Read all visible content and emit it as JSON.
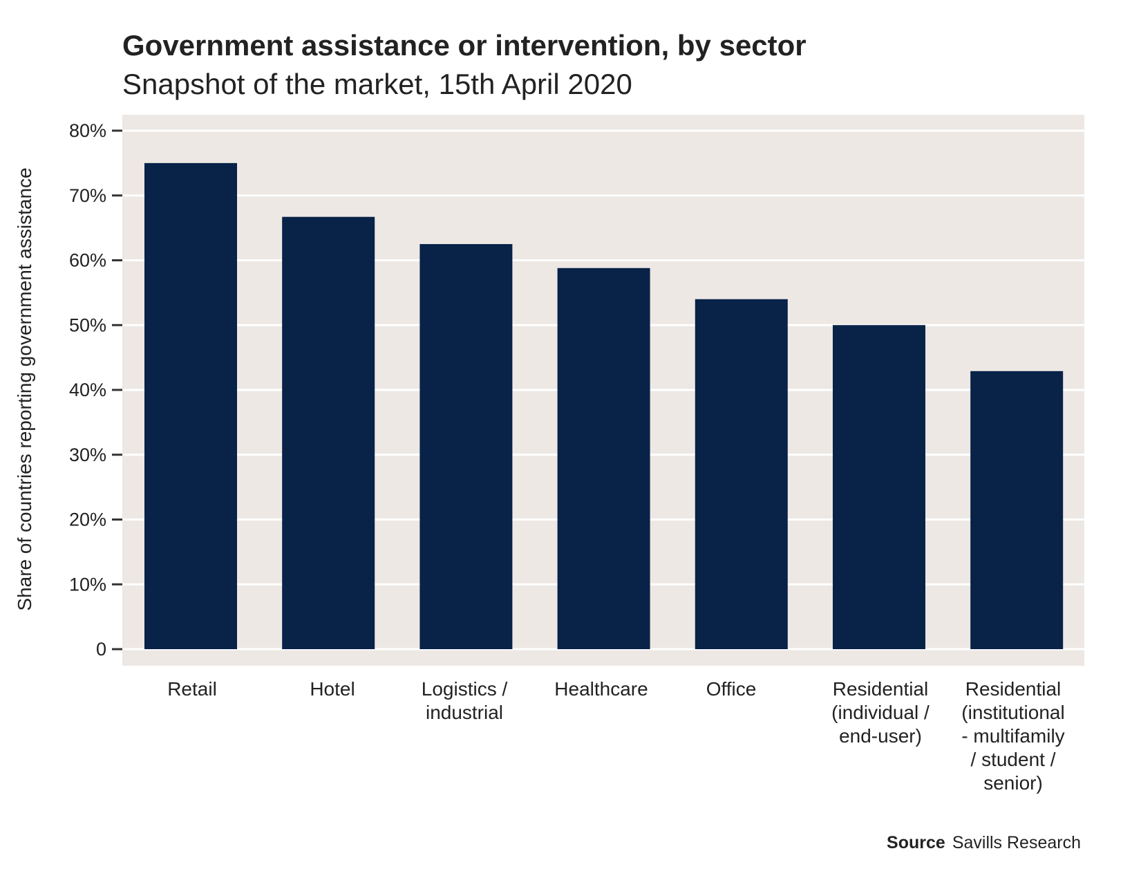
{
  "title": "Government assistance or intervention, by sector",
  "subtitle": "Snapshot of the market, 15th April 2020",
  "source": {
    "label": "Source",
    "text": "Savills Research"
  },
  "colors": {
    "bar": "#082248",
    "panel": "#ede8e4",
    "grid": "#ffffff",
    "text": "#222222"
  },
  "chart_data": {
    "type": "bar",
    "ylabel": "Share of countries reporting government assistance",
    "xlabel": "",
    "ylim": [
      0,
      80
    ],
    "yticks": [
      0,
      10,
      20,
      30,
      40,
      50,
      60,
      70,
      80
    ],
    "ytick_labels": [
      "0",
      "10%",
      "20%",
      "30%",
      "40%",
      "50%",
      "60%",
      "70%",
      "80%"
    ],
    "grid": true,
    "categories": [
      "Retail",
      "Hotel",
      "Logistics / industrial",
      "Healthcare",
      "Office",
      "Residential (individual / end-user)",
      "Residential (institutional - multifamily / student / senior)"
    ],
    "category_lines": [
      [
        "Retail"
      ],
      [
        "Hotel"
      ],
      [
        "Logistics /",
        "industrial"
      ],
      [
        "Healthcare"
      ],
      [
        "Office"
      ],
      [
        "Residential",
        "(individual /",
        "end-user)"
      ],
      [
        "Residential",
        "(institutional",
        "- multifamily",
        "/ student /",
        "senior)"
      ]
    ],
    "values": [
      75,
      66.7,
      62.5,
      58.8,
      54,
      50,
      42.9
    ]
  }
}
